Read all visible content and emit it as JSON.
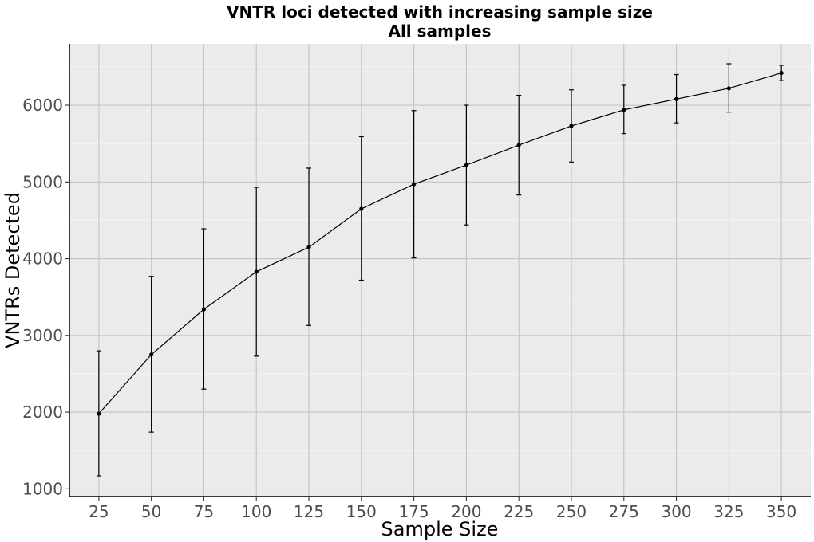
{
  "chart_data": {
    "type": "line",
    "title": "VNTR loci detected with increasing sample size",
    "subtitle": "All samples",
    "xlabel": "Sample Size",
    "ylabel": "VNTRs Detected",
    "x": [
      25,
      50,
      75,
      100,
      125,
      150,
      175,
      200,
      225,
      250,
      275,
      300,
      325,
      350
    ],
    "x_tick_labels": [
      "25",
      "50",
      "75",
      "100",
      "125",
      "150",
      "175",
      "200",
      "225",
      "250",
      "275",
      "300",
      "325",
      "350"
    ],
    "y_ticks": [
      1000,
      2000,
      3000,
      4000,
      5000,
      6000
    ],
    "y_tick_labels": [
      "1000",
      "2000",
      "3000",
      "4000",
      "5000",
      "6000"
    ],
    "xlim": [
      11,
      364
    ],
    "ylim": [
      900,
      6800
    ],
    "grid": true,
    "series": [
      {
        "values": [
          1980,
          2750,
          3340,
          3830,
          4150,
          4650,
          4970,
          5220,
          5480,
          5730,
          5940,
          6080,
          6220,
          6420
        ],
        "error_low": [
          1170,
          1740,
          2300,
          2730,
          3130,
          3720,
          4010,
          4440,
          4830,
          5260,
          5630,
          5770,
          5910,
          6320
        ],
        "error_high": [
          2800,
          3770,
          4390,
          4930,
          5180,
          5590,
          5930,
          6000,
          6130,
          6200,
          6260,
          6400,
          6540,
          6520
        ]
      }
    ],
    "colors": {
      "panel_background": "#ebebeb",
      "grid_major": "#c4c4c4",
      "grid_minor": "#f5f5f5",
      "series": "#000000",
      "axis": "#000000",
      "tick_text": "#4d4d4d"
    }
  }
}
